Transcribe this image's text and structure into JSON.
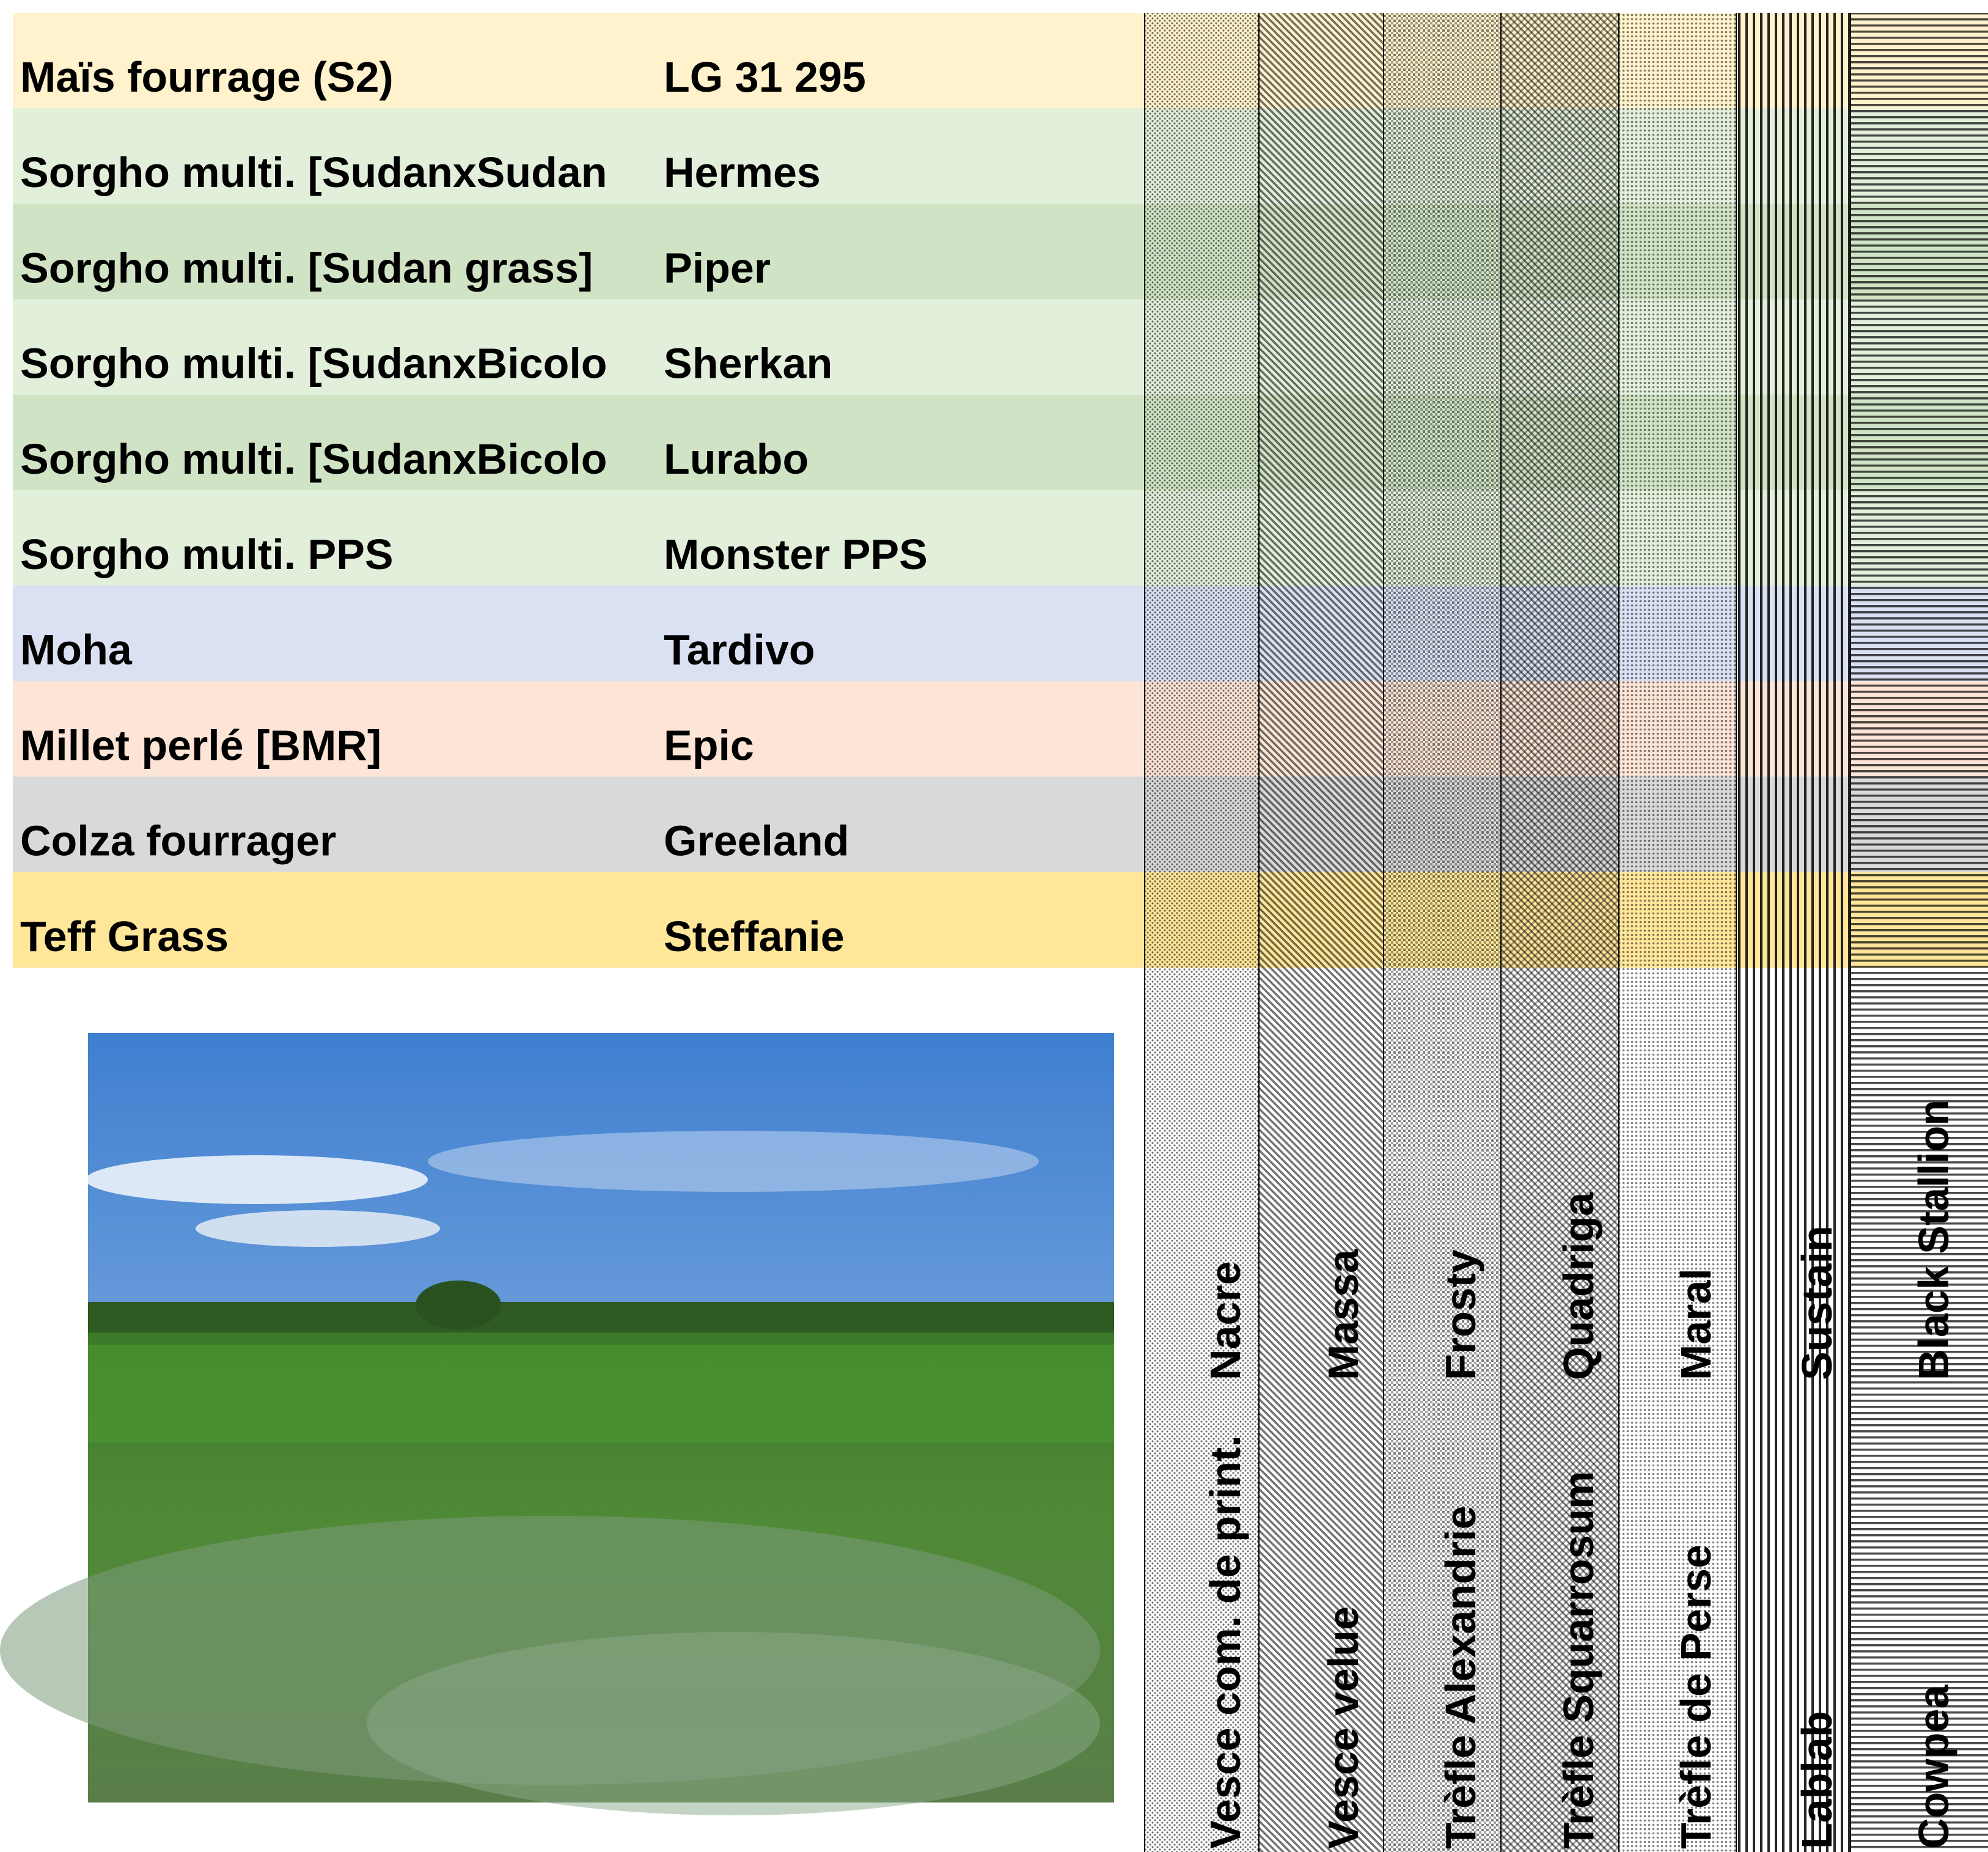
{
  "rows": [
    {
      "species": "Maïs fourrage (S2)",
      "variety": "LG 31 295"
    },
    {
      "species": "Sorgho multi. [SudanxSudan",
      "variety": "Hermes"
    },
    {
      "species": "Sorgho multi. [Sudan grass]",
      "variety": "Piper"
    },
    {
      "species": "Sorgho multi. [SudanxBicolo",
      "variety": "Sherkan"
    },
    {
      "species": "Sorgho multi. [SudanxBicolo",
      "variety": "Lurabo"
    },
    {
      "species": "Sorgho multi. PPS",
      "variety": "Monster PPS"
    },
    {
      "species": "Moha",
      "variety": "Tardivo"
    },
    {
      "species": "Millet perlé [BMR]",
      "variety": "Epic"
    },
    {
      "species": "Colza fourrager",
      "variety": "Greeland"
    },
    {
      "species": "Teff Grass",
      "variety": "Steffanie"
    }
  ],
  "columns": [
    {
      "species": "Vesce com. de print.",
      "variety": "Nacre"
    },
    {
      "species": "Vesce velue",
      "variety": "Massa"
    },
    {
      "species": "Trèfle Alexandrie",
      "variety": "Frosty"
    },
    {
      "species": "Trèfle Squarrosum",
      "variety": "Quadriga"
    },
    {
      "species": "Trèfle de Perse",
      "variety": "Maral"
    },
    {
      "species": "Lablab",
      "variety": "Sustain"
    },
    {
      "species": "Cowpea",
      "variety": "Black Stallion"
    }
  ]
}
